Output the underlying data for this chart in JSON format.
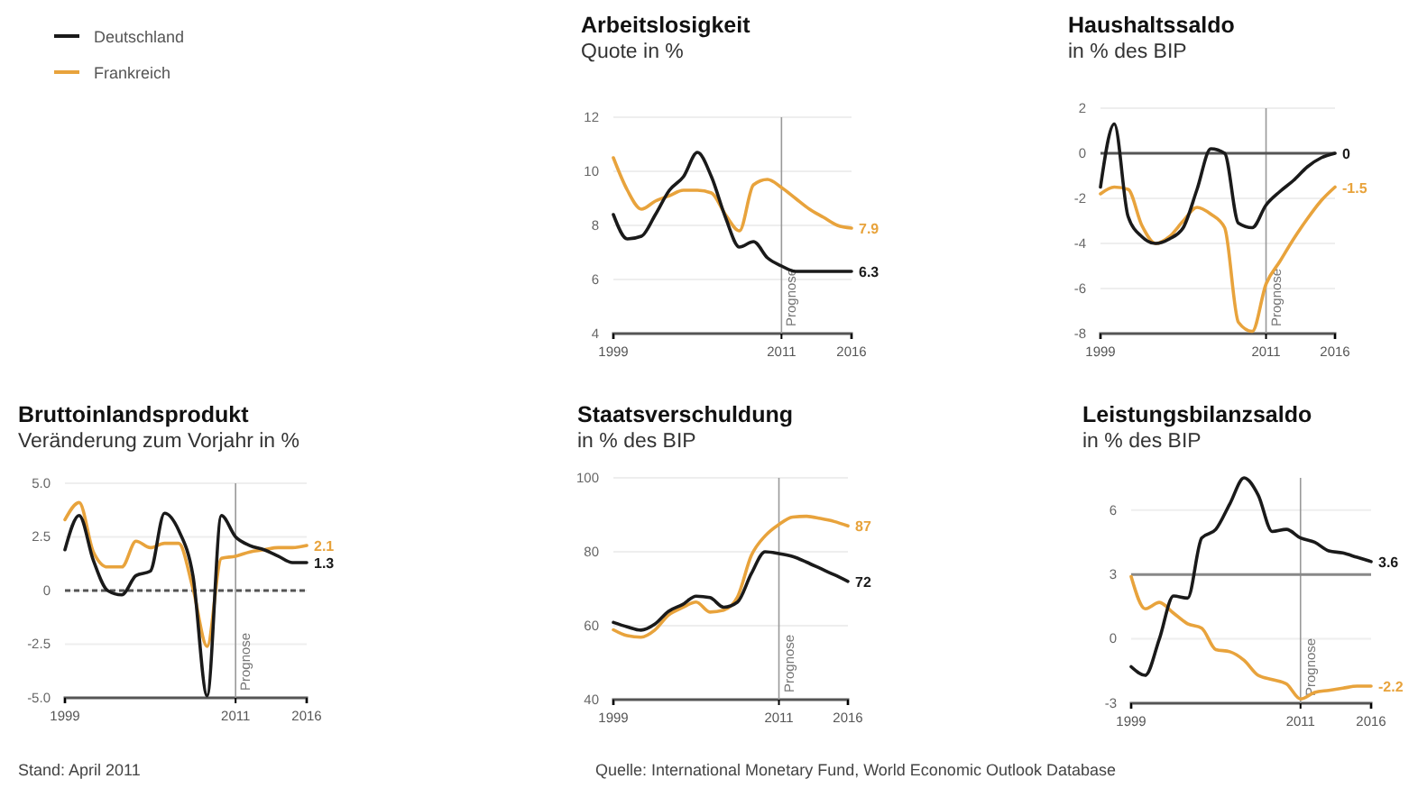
{
  "chart_data": [
    {
      "type": "line",
      "title": "Arbeitslosigkeit",
      "subtitle": "Quote in %",
      "x": [
        1999,
        2000,
        2001,
        2002,
        2003,
        2004,
        2005,
        2006,
        2007,
        2008,
        2009,
        2010,
        2011,
        2012,
        2013,
        2014,
        2015,
        2016
      ],
      "xlim": [
        1999,
        2016
      ],
      "xticks": [
        1999,
        2011,
        2016
      ],
      "ylim": [
        4,
        12
      ],
      "yticks": [
        4,
        6,
        8,
        10,
        12
      ],
      "grid": "y",
      "legend": "left",
      "series": [
        {
          "name": "Deutschland",
          "color": "#1a1a1a",
          "values": [
            8.4,
            7.5,
            7.6,
            8.4,
            9.3,
            9.8,
            10.7,
            9.8,
            8.3,
            7.2,
            7.4,
            6.8,
            6.5,
            6.3,
            6.3,
            6.3,
            6.3,
            6.3
          ],
          "value_labels": [
            null,
            null,
            null,
            null,
            null,
            null,
            null,
            null,
            null,
            null,
            null,
            null,
            null,
            null,
            null,
            null,
            null,
            "6.3"
          ]
        },
        {
          "name": "Frankreich",
          "color": "#e8a33c",
          "values": [
            10.5,
            9.3,
            8.6,
            8.9,
            9.1,
            9.3,
            9.3,
            9.2,
            8.4,
            7.8,
            9.5,
            9.7,
            9.4,
            9.0,
            8.6,
            8.3,
            8.0,
            7.9
          ],
          "value_labels": [
            null,
            null,
            null,
            null,
            null,
            null,
            null,
            null,
            null,
            null,
            null,
            null,
            null,
            null,
            null,
            null,
            null,
            "7.9"
          ]
        }
      ],
      "ref_lines": [
        {
          "axis": "x",
          "value": 2011,
          "label": "Prognose",
          "color": "#999999"
        }
      ]
    },
    {
      "type": "line",
      "title": "Haushaltssaldo",
      "subtitle": "in % des BIP",
      "x": [
        1999,
        2000,
        2001,
        2002,
        2003,
        2004,
        2005,
        2006,
        2007,
        2008,
        2009,
        2010,
        2011,
        2012,
        2013,
        2014,
        2015,
        2016
      ],
      "xlim": [
        1999,
        2016
      ],
      "xticks": [
        1999,
        2011,
        2016
      ],
      "ylim": [
        -8,
        2
      ],
      "yticks": [
        -8,
        -6,
        -4,
        -2,
        0,
        2
      ],
      "grid": "y",
      "legend": false,
      "series": [
        {
          "color": "#1a1a1a",
          "values": [
            -1.5,
            1.3,
            -2.8,
            -3.7,
            -4.0,
            -3.8,
            -3.3,
            -1.6,
            0.2,
            0.0,
            -3.1,
            -3.3,
            -2.3,
            -1.7,
            -1.2,
            -0.6,
            -0.2,
            0
          ],
          "value_labels": [
            null,
            null,
            null,
            null,
            null,
            null,
            null,
            null,
            null,
            null,
            null,
            null,
            null,
            null,
            null,
            null,
            null,
            "0"
          ]
        },
        {
          "color": "#e8a33c",
          "values": [
            -1.8,
            -1.5,
            -1.6,
            -3.2,
            -4.0,
            -3.7,
            -3.0,
            -2.4,
            -2.7,
            -3.3,
            -7.5,
            -7.9,
            -5.8,
            -4.8,
            -3.8,
            -2.9,
            -2.1,
            -1.5
          ],
          "value_labels": [
            null,
            null,
            null,
            null,
            null,
            null,
            null,
            null,
            null,
            null,
            null,
            null,
            null,
            null,
            null,
            null,
            null,
            "-1.5"
          ]
        }
      ],
      "ref_lines": [
        {
          "axis": "x",
          "value": 2011,
          "label": "Prognose",
          "color": "#999999"
        },
        {
          "axis": "y",
          "value": 0,
          "color": "#555555"
        }
      ]
    },
    {
      "type": "line",
      "title": "Bruttoinlandsprodukt",
      "subtitle": "Veränderung zum Vorjahr in %",
      "x": [
        1999,
        2000,
        2001,
        2002,
        2003,
        2004,
        2005,
        2006,
        2007,
        2008,
        2009,
        2010,
        2011,
        2012,
        2013,
        2014,
        2015,
        2016
      ],
      "xlim": [
        1999,
        2016
      ],
      "xticks": [
        1999,
        2011,
        2016
      ],
      "ylim": [
        -5,
        5
      ],
      "yticks": [
        {
          "value": -5,
          "label": "-5.0"
        },
        {
          "value": -2.5,
          "label": "-2.5"
        },
        0,
        {
          "value": 2.5,
          "label": "2.5"
        },
        {
          "value": 5,
          "label": "5.0"
        }
      ],
      "grid": "y",
      "legend": false,
      "series": [
        {
          "color": "#1a1a1a",
          "values": [
            1.9,
            3.5,
            1.4,
            0.0,
            -0.2,
            0.7,
            0.9,
            3.6,
            2.8,
            0.7,
            -4.9,
            3.5,
            2.5,
            2.1,
            1.9,
            1.6,
            1.3,
            1.3
          ],
          "value_labels": [
            null,
            null,
            null,
            null,
            null,
            null,
            null,
            null,
            null,
            null,
            null,
            null,
            null,
            null,
            null,
            null,
            null,
            "1.3"
          ]
        },
        {
          "color": "#e8a33c",
          "values": [
            3.3,
            4.1,
            1.8,
            1.1,
            1.1,
            2.3,
            2.0,
            2.2,
            2.2,
            0.1,
            -2.6,
            1.5,
            1.6,
            1.8,
            1.9,
            2.0,
            2.0,
            2.1
          ],
          "value_labels": [
            null,
            null,
            null,
            null,
            null,
            null,
            null,
            null,
            null,
            null,
            null,
            null,
            null,
            null,
            null,
            null,
            null,
            "2.1"
          ]
        }
      ],
      "ref_lines": [
        {
          "axis": "x",
          "value": 2011,
          "label": "Prognose",
          "color": "#999999"
        },
        {
          "axis": "y",
          "value": 0,
          "color": "#555555",
          "line_style": "dashed"
        }
      ],
      "annotations": [
        "Stand: April 2011"
      ]
    },
    {
      "type": "line",
      "title": "Staatsverschuldung",
      "subtitle": "in % des BIP",
      "x": [
        1999,
        2000,
        2001,
        2002,
        2003,
        2004,
        2005,
        2006,
        2007,
        2008,
        2009,
        2010,
        2011,
        2012,
        2013,
        2014,
        2015,
        2016
      ],
      "xlim": [
        1999,
        2016
      ],
      "xticks": [
        1999,
        2011,
        2016
      ],
      "ylim": [
        40,
        100
      ],
      "yticks": [
        40,
        60,
        80,
        100
      ],
      "grid": "y",
      "legend": false,
      "series": [
        {
          "color": "#1a1a1a",
          "values": [
            60.9,
            59.7,
            58.8,
            60.4,
            63.9,
            65.7,
            68.0,
            67.6,
            65.0,
            66.4,
            74.1,
            80.0,
            79.5,
            78.7,
            77.2,
            75.5,
            73.8,
            72
          ],
          "value_labels": [
            null,
            null,
            null,
            null,
            null,
            null,
            null,
            null,
            null,
            null,
            null,
            null,
            null,
            null,
            null,
            null,
            null,
            "72"
          ]
        },
        {
          "color": "#e8a33c",
          "values": [
            58.9,
            57.3,
            56.9,
            58.8,
            62.9,
            64.9,
            66.4,
            63.7,
            64.2,
            67.8,
            79.0,
            84.3,
            87.4,
            89.4,
            89.6,
            89.0,
            88.2,
            87
          ],
          "value_labels": [
            null,
            null,
            null,
            null,
            null,
            null,
            null,
            null,
            null,
            null,
            null,
            null,
            null,
            null,
            null,
            null,
            null,
            "87"
          ]
        }
      ],
      "ref_lines": [
        {
          "axis": "x",
          "value": 2011,
          "label": "Prognose",
          "color": "#999999"
        }
      ],
      "annotations": [
        "Quelle: International Monetary Fund, World Economic Outlook Database"
      ]
    },
    {
      "type": "line",
      "title": "Leistungsbilanzsaldo",
      "subtitle": "in % des BIP",
      "x": [
        1999,
        2000,
        2001,
        2002,
        2003,
        2004,
        2005,
        2006,
        2007,
        2008,
        2009,
        2010,
        2011,
        2012,
        2013,
        2014,
        2015,
        2016
      ],
      "xlim": [
        1999,
        2016
      ],
      "xticks": [
        1999,
        2011,
        2016
      ],
      "ylim": [
        -3,
        7.5
      ],
      "yticks": [
        -3,
        0,
        3,
        6
      ],
      "grid": "y",
      "legend": false,
      "series": [
        {
          "color": "#1a1a1a",
          "values": [
            -1.3,
            -1.7,
            0.0,
            2.0,
            1.9,
            4.7,
            5.1,
            6.3,
            7.5,
            6.7,
            5.0,
            5.1,
            4.7,
            4.5,
            4.1,
            4.0,
            3.8,
            3.6
          ],
          "value_labels": [
            null,
            null,
            null,
            null,
            null,
            null,
            null,
            null,
            null,
            null,
            null,
            null,
            null,
            null,
            null,
            null,
            null,
            "3.6"
          ]
        },
        {
          "color": "#e8a33c",
          "values": [
            2.9,
            1.4,
            1.7,
            1.2,
            0.7,
            0.5,
            -0.5,
            -0.6,
            -1.0,
            -1.7,
            -1.9,
            -2.1,
            -2.8,
            -2.5,
            -2.4,
            -2.3,
            -2.2,
            -2.2
          ],
          "value_labels": [
            null,
            null,
            null,
            null,
            null,
            null,
            null,
            null,
            null,
            null,
            null,
            null,
            null,
            null,
            null,
            null,
            null,
            "-2.2"
          ]
        }
      ],
      "ref_lines": [
        {
          "axis": "x",
          "value": 2011,
          "label": "Prognose",
          "color": "#999999"
        },
        {
          "axis": "y",
          "value": 3,
          "color": "#888888"
        }
      ]
    }
  ]
}
